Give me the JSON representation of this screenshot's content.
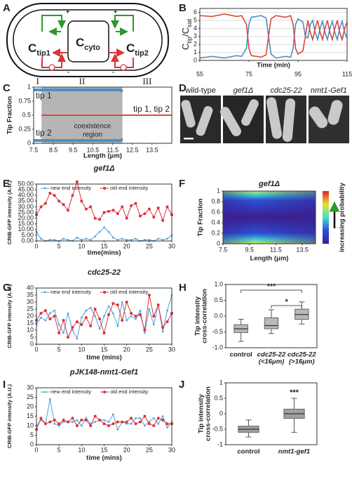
{
  "panel_letters": [
    "A",
    "B",
    "C",
    "D",
    "E",
    "F",
    "G",
    "H",
    "I",
    "J"
  ],
  "diagram": {
    "nodes": [
      {
        "main": "C",
        "sub": "tip1"
      },
      {
        "main": "C",
        "sub": "cyto"
      },
      {
        "main": "C",
        "sub": "tip2"
      }
    ],
    "signs": [
      "+",
      "+",
      "-",
      "-"
    ]
  },
  "micrographs": {
    "labels": [
      "wild-type",
      "gef1Δ",
      "cdc25-22",
      "nmt1-Gef1"
    ]
  },
  "chart_data": [
    {
      "type": "line",
      "grid": true,
      "ylabel": [
        {
          "text": "C"
        },
        {
          "text": "tip",
          "sub": true
        },
        {
          "text": "/C"
        },
        {
          "text": "sat",
          "sub": true
        }
      ],
      "xlabel": "Time (min)",
      "x": [
        55,
        60,
        65,
        70,
        72,
        74,
        75,
        76,
        80,
        82,
        83,
        84,
        86,
        90,
        92,
        93,
        94,
        95,
        97,
        98,
        99,
        100,
        101,
        102,
        103,
        104,
        105,
        106,
        107,
        108,
        109,
        110,
        111,
        112,
        113,
        114,
        115
      ],
      "series": [
        {
          "color": "#4a90c8",
          "values": [
            0.3,
            0.5,
            0.3,
            0.6,
            0.5,
            1.5,
            4.5,
            5.4,
            5.6,
            5.3,
            3,
            0.8,
            0.3,
            0.5,
            0.4,
            1.5,
            4.5,
            5.2,
            4.8,
            3,
            2.8,
            4.5,
            5,
            3.5,
            2.6,
            4,
            4.9,
            3.5,
            2.6,
            4,
            4.9,
            3.5,
            2.6,
            4,
            4.9,
            3.5,
            2.8
          ]
        },
        {
          "color": "#d9473a",
          "values": [
            5.6,
            5.5,
            5.8,
            5.5,
            5.6,
            4.5,
            1.5,
            0.6,
            0.4,
            0.7,
            3,
            5.2,
            5.6,
            5.4,
            5.6,
            4.5,
            1.5,
            0.8,
            1.2,
            3,
            5,
            3.5,
            2.6,
            4,
            5,
            3.5,
            2.6,
            4,
            5,
            3.5,
            2.6,
            4,
            5,
            3.5,
            2.6,
            4,
            4.8
          ]
        }
      ],
      "xlim": [
        55,
        115
      ],
      "ylim": [
        0,
        6.5
      ],
      "xticks": [
        55,
        75,
        95,
        115
      ],
      "yticks": [
        0,
        1,
        2,
        3,
        4,
        5,
        6
      ]
    },
    {
      "type": "phase",
      "ylabel": "Tip Fraction",
      "xlabel": "Length (μm)",
      "xlim": [
        7.5,
        14.5
      ],
      "ylim": [
        0,
        1
      ],
      "xticks": [
        7.5,
        8.5,
        9.5,
        10.5,
        11.5,
        12.5,
        13.5
      ],
      "yticks": [
        0,
        0.25,
        0.5,
        0.75,
        1
      ],
      "region": [
        7.9,
        12
      ],
      "region_label": [
        "coexistence",
        "region"
      ],
      "roman": [
        "I",
        "II",
        "III"
      ],
      "series": [
        {
          "name": "tip 1",
          "color": "#4a90c8",
          "x": [
            7.5,
            11.9,
            12
          ],
          "values": [
            0.95,
            0.95,
            0.92
          ]
        },
        {
          "name": "tip 2",
          "color": "#4a90c8",
          "x": [
            7.5,
            11.9,
            12
          ],
          "values": [
            0.05,
            0.05,
            0.08
          ]
        },
        {
          "name": "tip 1, tip 2",
          "color": "#e0473a",
          "x": [
            7.9,
            14.5
          ],
          "values": [
            0.5,
            0.5
          ]
        }
      ]
    },
    {
      "type": "line",
      "title": "gef1Δ",
      "xlabel": "time(mins)",
      "ylabel": "CRIB-GFP intensity (A.U.)",
      "x": [
        0,
        1,
        2,
        3,
        4,
        5,
        6,
        7,
        8,
        9,
        10,
        11,
        12,
        13,
        14,
        15,
        16,
        17,
        18,
        19,
        20,
        21,
        22,
        23,
        24,
        25,
        26,
        27,
        28,
        29,
        30
      ],
      "series": [
        {
          "name": "new end intensity",
          "color": "#4a9fd8",
          "values": [
            8,
            2,
            0,
            1,
            1,
            0,
            2,
            1,
            0,
            3,
            1,
            2,
            1,
            4,
            8,
            12,
            8,
            3,
            1,
            2,
            1,
            1,
            2,
            0,
            1,
            1,
            0,
            2,
            1,
            2,
            5
          ]
        },
        {
          "name": "old end intensity",
          "color": "#d9343a",
          "values": [
            23,
            30,
            33,
            42,
            40,
            35,
            32,
            27,
            40,
            52,
            35,
            28,
            30,
            20,
            19,
            25,
            26,
            27,
            24,
            30,
            20,
            31,
            33,
            22,
            24,
            28,
            21,
            29,
            18,
            30,
            23
          ]
        }
      ],
      "xlim": [
        0,
        30
      ],
      "ylim": [
        0,
        50
      ],
      "xticks": [
        0,
        5,
        10,
        15,
        20,
        25,
        30
      ],
      "yticks": [
        {
          "value": 0,
          "label": "0.00"
        },
        {
          "value": 5,
          "label": "5.00"
        },
        {
          "value": 10,
          "label": "10.00"
        },
        {
          "value": 15,
          "label": "15.00"
        },
        {
          "value": 20,
          "label": "20.00"
        },
        {
          "value": 25,
          "label": "25.00"
        },
        {
          "value": 30,
          "label": "30.00"
        },
        {
          "value": 35,
          "label": "35.00"
        },
        {
          "value": 40,
          "label": "40.00"
        },
        {
          "value": 45,
          "label": "45.00"
        },
        {
          "value": 50,
          "label": "50.00"
        }
      ]
    },
    {
      "type": "heatmap",
      "title": "gef1Δ",
      "xlabel": "Length (μm)",
      "ylabel": "Tip Fraction",
      "colorbar_label": "increasing probability",
      "xlim": [
        7.5,
        14.5
      ],
      "ylim": [
        0,
        1
      ],
      "xticks": [
        7.5,
        9.5,
        11.5,
        13.5
      ],
      "yticks": [
        0,
        0.2,
        0.4,
        0.6,
        0.8,
        1
      ]
    },
    {
      "type": "line",
      "title": "cdc25-22",
      "xlabel": "time (mins)",
      "ylabel": "CRIB-GFP intensity (A.U.)",
      "x": [
        0,
        1,
        2,
        3,
        4,
        5,
        6,
        7,
        8,
        9,
        10,
        11,
        12,
        13,
        14,
        15,
        16,
        17,
        18,
        19,
        20,
        21,
        22,
        23,
        24,
        25,
        26,
        27,
        28,
        29,
        30
      ],
      "series": [
        {
          "name": "new end intensity",
          "color": "#4a9fd8",
          "values": [
            14,
            19,
            17,
            22,
            24,
            14,
            8,
            22,
            10,
            4,
            19,
            24,
            26,
            20,
            11,
            20,
            27,
            22,
            13,
            30,
            17,
            20,
            18,
            24,
            8,
            25,
            14,
            28,
            9,
            24,
            35
          ]
        },
        {
          "name": "old end intensity",
          "color": "#d9343a",
          "values": [
            17,
            22,
            24,
            18,
            20,
            8,
            17,
            5,
            12,
            16,
            14,
            19,
            13,
            25,
            18,
            8,
            21,
            29,
            28,
            17,
            30,
            22,
            20,
            21,
            10,
            35,
            20,
            28,
            12,
            16,
            22
          ]
        }
      ],
      "xlim": [
        0,
        30
      ],
      "ylim": [
        0,
        40
      ],
      "xticks": [
        0,
        5,
        10,
        15,
        20,
        25,
        30
      ],
      "yticks": [
        0,
        5,
        10,
        15,
        20,
        25,
        30,
        35,
        40
      ]
    },
    {
      "type": "box",
      "ylabel": [
        "Tip intensity",
        "cross-correlation"
      ],
      "categories": [
        [
          "control"
        ],
        [
          "cdc25-22",
          "(<16μm)"
        ],
        [
          "cdc25-22",
          "(>16μm)"
        ]
      ],
      "boxes": [
        {
          "low": -0.8,
          "q1": -0.52,
          "median": -0.4,
          "q3": -0.27,
          "high": -0.1
        },
        {
          "low": -0.55,
          "q1": -0.4,
          "median": -0.3,
          "q3": -0.05,
          "high": 0.2
        },
        {
          "low": -0.25,
          "q1": -0.1,
          "median": 0.05,
          "q3": 0.22,
          "high": 0.45
        }
      ],
      "color": "#b8b8b8",
      "ylim": [
        -1,
        1
      ],
      "yticks": [
        {
          "value": -1,
          "label": "-1.0"
        },
        {
          "value": -0.5,
          "label": "-0.5"
        },
        {
          "value": 0,
          "label": "0.0"
        },
        {
          "value": 0.5,
          "label": "0.5"
        },
        {
          "value": 1,
          "label": "1.0"
        }
      ],
      "significance": [
        {
          "pair": [
            0,
            2
          ],
          "label": "***"
        },
        {
          "pair": [
            1,
            2
          ],
          "label": "*"
        }
      ]
    },
    {
      "type": "line",
      "title": "pJK148-nmt1-Gef1",
      "xlabel": "time (mins)",
      "ylabel": "CRIB-GFP intensity (A.U.)",
      "x": [
        0,
        1,
        2,
        3,
        4,
        5,
        6,
        7,
        8,
        9,
        10,
        11,
        12,
        13,
        14,
        15,
        16,
        17,
        18,
        19,
        20,
        21,
        22,
        23,
        24,
        25,
        26,
        27,
        28,
        29,
        30
      ],
      "series": [
        {
          "name": "new end intensity",
          "color": "#4a9fd8",
          "values": [
            10,
            13,
            11,
            24,
            11,
            10,
            12,
            12,
            12,
            13,
            10,
            14,
            11,
            12,
            13,
            13,
            12,
            16,
            8,
            12,
            11,
            11,
            14,
            14,
            10,
            12,
            14,
            11,
            15,
            9,
            12
          ]
        },
        {
          "name": "old end intensity",
          "color": "#d9343a",
          "values": [
            8,
            14,
            11,
            12,
            13,
            11,
            13,
            12,
            14,
            10,
            13,
            13,
            10,
            15,
            13,
            11,
            10,
            11,
            12,
            12,
            12,
            14,
            11,
            12,
            15,
            11,
            10,
            14,
            13,
            11,
            11
          ]
        }
      ],
      "xlim": [
        0,
        30
      ],
      "ylim": [
        0,
        30
      ],
      "xticks": [
        0,
        5,
        10,
        15,
        20,
        25,
        30
      ],
      "yticks": [
        0,
        5,
        10,
        15,
        20,
        25,
        30
      ]
    },
    {
      "type": "box",
      "ylabel": [
        "Tip intensity",
        "cross-correlation"
      ],
      "categories": [
        [
          "control"
        ],
        [
          "nmt1-gef1"
        ]
      ],
      "boxes": [
        {
          "low": -0.75,
          "q1": -0.6,
          "median": -0.5,
          "q3": -0.4,
          "high": -0.2
        },
        {
          "low": -0.6,
          "q1": -0.15,
          "median": 0,
          "q3": 0.15,
          "high": 0.5
        }
      ],
      "color": "#a0a0a0",
      "ylim": [
        -1,
        1
      ],
      "yticks": [
        -1,
        -0.5,
        0,
        0.5,
        1
      ],
      "significance": [
        {
          "over": 1,
          "label": "***"
        }
      ]
    }
  ]
}
